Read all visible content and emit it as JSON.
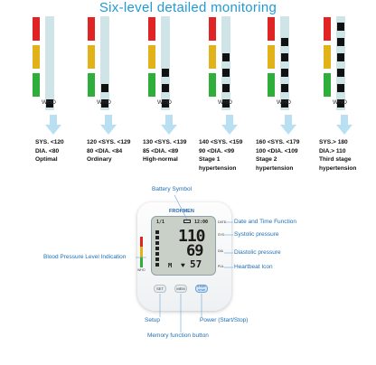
{
  "title": "Six-level detailed monitoring",
  "who_label": "WHO",
  "levels": [
    {
      "line1": "SYS. <120",
      "line2": "DIA. <80",
      "line3": "Optimal",
      "line4": ""
    },
    {
      "line1": "120 <SYS. <129",
      "line2": "80 <DIA. <84",
      "line3": "Ordinary",
      "line4": ""
    },
    {
      "line1": "130 <SYS. <139",
      "line2": "85 <DIA. <89",
      "line3": "High-normal",
      "line4": ""
    },
    {
      "line1": "140 <SYS. <159",
      "line2": "90 <DIA. <99",
      "line3": "Stage 1",
      "line4": "hypertension"
    },
    {
      "line1": "160 <SYS. <179",
      "line2": "100 <DIA. <109",
      "line3": "Stage 2",
      "line4": "hypertension"
    },
    {
      "line1": "SYS.> 180",
      "line2": "DIA.> 110",
      "line3": "Third stage",
      "line4": "hypertension"
    }
  ],
  "level_blocks": [
    1,
    2,
    3,
    4,
    5,
    6
  ],
  "colors": {
    "title": "#1f9ad6",
    "red": "#e02424",
    "yellow": "#e2b21a",
    "green": "#2eae3a",
    "meter": "#cfe4e6",
    "arrow": "#b9dff2",
    "label": "#1f6fb5"
  },
  "device": {
    "brand": "FROHMEN",
    "lcd": {
      "systolic": "110",
      "diastolic": "69",
      "pulse": "57",
      "date": "1/1",
      "time": "12:00",
      "mem": "M"
    },
    "side_labels": {
      "date": "DATE",
      "sys": "SYS",
      "dia": "DIA",
      "pul": "PUL"
    },
    "buttons": {
      "set": "SET",
      "mem": "MEM",
      "power": "START STOP"
    }
  },
  "callouts": {
    "battery": "Battery Symbol",
    "date_time": "Date and Time Function",
    "systolic": "Systolic pressure",
    "diastolic": "Diastolic pressure",
    "heartbeat": "Heartbeat Icon",
    "level_indication": "Blood Pressure Level Indication",
    "setup": "Setup",
    "power": "Power (Start/Stop)",
    "memory": "Memory function button"
  }
}
